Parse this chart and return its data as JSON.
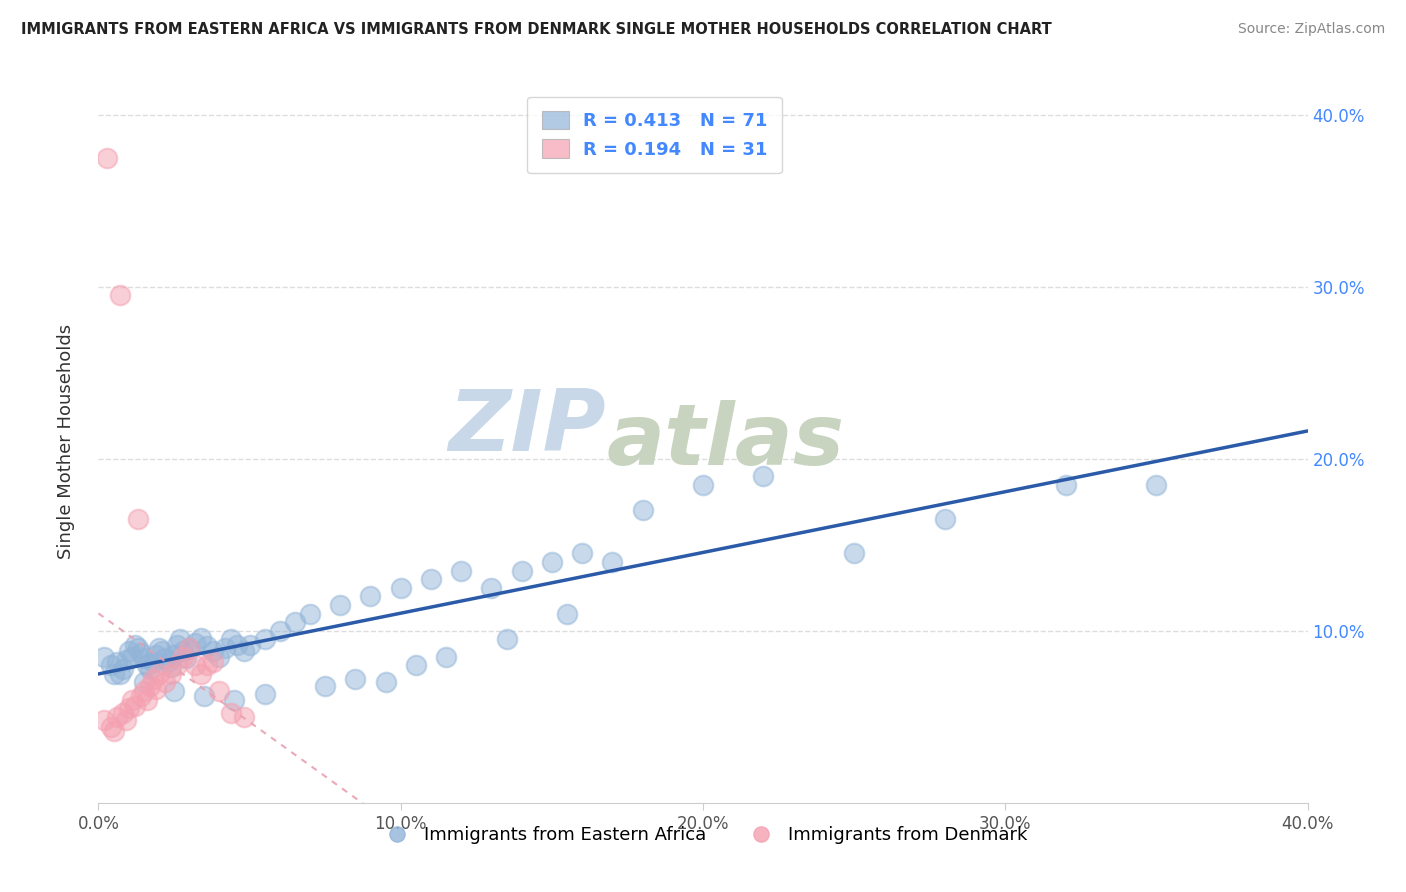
{
  "title": "IMMIGRANTS FROM EASTERN AFRICA VS IMMIGRANTS FROM DENMARK SINGLE MOTHER HOUSEHOLDS CORRELATION CHART",
  "source": "Source: ZipAtlas.com",
  "ylabel": "Single Mother Households",
  "xlim": [
    0.0,
    0.4
  ],
  "ylim": [
    0.0,
    0.42
  ],
  "xtick_vals": [
    0.0,
    0.1,
    0.2,
    0.3,
    0.4
  ],
  "ytick_vals": [
    0.1,
    0.2,
    0.3,
    0.4
  ],
  "blue_color": "#92B4D8",
  "pink_color": "#F4A0B0",
  "blue_line_color": "#2B5BA8",
  "pink_line_color": "#E8506A",
  "trend_line_color": "#E8A0B0",
  "legend_box_color": "#FFFFFF",
  "R_blue": 0.413,
  "N_blue": 71,
  "R_pink": 0.194,
  "N_pink": 31,
  "blue_scatter_x": [
    0.002,
    0.004,
    0.006,
    0.007,
    0.008,
    0.009,
    0.01,
    0.011,
    0.012,
    0.013,
    0.014,
    0.015,
    0.016,
    0.017,
    0.018,
    0.019,
    0.02,
    0.021,
    0.022,
    0.023,
    0.024,
    0.025,
    0.026,
    0.027,
    0.028,
    0.029,
    0.03,
    0.032,
    0.034,
    0.036,
    0.038,
    0.04,
    0.042,
    0.044,
    0.046,
    0.048,
    0.05,
    0.055,
    0.06,
    0.065,
    0.07,
    0.08,
    0.09,
    0.1,
    0.11,
    0.12,
    0.13,
    0.14,
    0.15,
    0.16,
    0.17,
    0.18,
    0.2,
    0.22,
    0.25,
    0.28,
    0.32,
    0.35,
    0.005,
    0.015,
    0.025,
    0.035,
    0.045,
    0.055,
    0.075,
    0.085,
    0.095,
    0.105,
    0.115,
    0.135,
    0.155
  ],
  "blue_scatter_y": [
    0.085,
    0.08,
    0.082,
    0.075,
    0.078,
    0.083,
    0.088,
    0.085,
    0.092,
    0.09,
    0.087,
    0.084,
    0.08,
    0.078,
    0.082,
    0.086,
    0.09,
    0.088,
    0.084,
    0.082,
    0.079,
    0.086,
    0.092,
    0.095,
    0.088,
    0.084,
    0.09,
    0.093,
    0.096,
    0.091,
    0.088,
    0.085,
    0.09,
    0.095,
    0.092,
    0.088,
    0.092,
    0.095,
    0.1,
    0.105,
    0.11,
    0.115,
    0.12,
    0.125,
    0.13,
    0.135,
    0.125,
    0.135,
    0.14,
    0.145,
    0.14,
    0.17,
    0.185,
    0.19,
    0.145,
    0.165,
    0.185,
    0.185,
    0.075,
    0.07,
    0.065,
    0.062,
    0.06,
    0.063,
    0.068,
    0.072,
    0.07,
    0.08,
    0.085,
    0.095,
    0.11
  ],
  "pink_scatter_x": [
    0.002,
    0.004,
    0.005,
    0.006,
    0.008,
    0.009,
    0.01,
    0.011,
    0.012,
    0.014,
    0.015,
    0.016,
    0.017,
    0.018,
    0.019,
    0.02,
    0.022,
    0.024,
    0.026,
    0.028,
    0.03,
    0.032,
    0.034,
    0.036,
    0.038,
    0.04,
    0.044,
    0.048,
    0.003,
    0.007,
    0.013
  ],
  "pink_scatter_y": [
    0.048,
    0.044,
    0.042,
    0.05,
    0.052,
    0.048,
    0.055,
    0.06,
    0.056,
    0.062,
    0.065,
    0.06,
    0.068,
    0.072,
    0.066,
    0.075,
    0.07,
    0.075,
    0.08,
    0.085,
    0.09,
    0.08,
    0.075,
    0.08,
    0.082,
    0.065,
    0.052,
    0.05,
    0.375,
    0.295,
    0.165
  ],
  "watermark_top": "ZIP",
  "watermark_bottom": "atlas",
  "watermark_color_top": "#C8D8E8",
  "watermark_color_bottom": "#C8D4C0",
  "background_color": "#FFFFFF",
  "grid_color": "#DDDDDD"
}
